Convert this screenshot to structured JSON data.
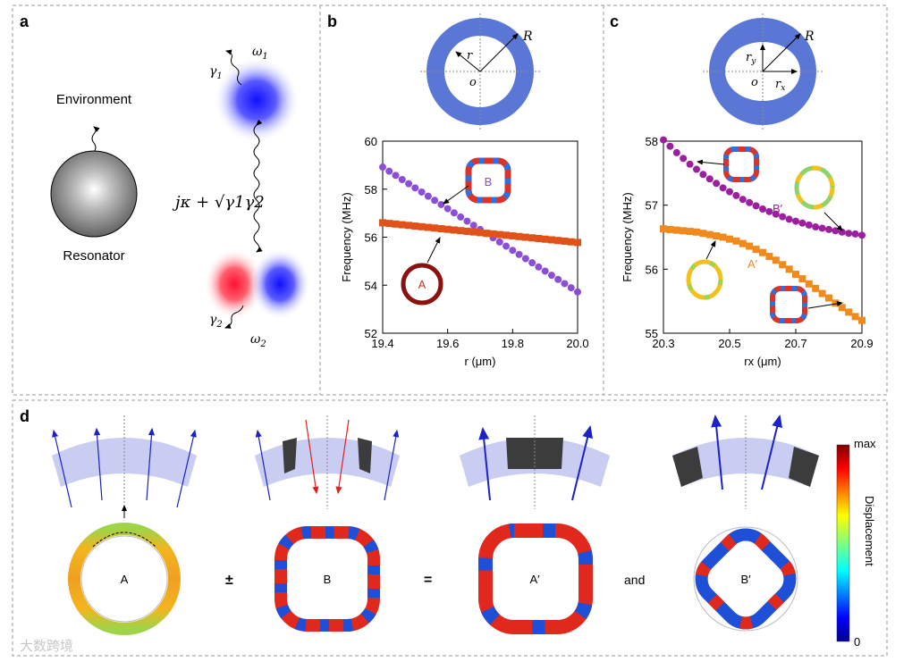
{
  "panel_labels": {
    "a": "a",
    "b": "b",
    "c": "c",
    "d": "d"
  },
  "panel_a": {
    "environment": "Environment",
    "resonator": "Resonator",
    "omega1": "ω",
    "omega1_sub": "1",
    "omega2": "ω",
    "omega2_sub": "2",
    "gamma1": "γ",
    "gamma1_sub": "1",
    "gamma2": "γ",
    "gamma2_sub": "2",
    "coupling": "jκ + √γ1γ2"
  },
  "panel_b_schematic": {
    "R": "R",
    "r": "r",
    "o": "o"
  },
  "panel_c_schematic": {
    "R": "R",
    "ry": "r",
    "ry_sub": "y",
    "rx": "r",
    "rx_sub": "x",
    "o": "o"
  },
  "panel_b_labels": {
    "A": "A",
    "B": "B"
  },
  "panel_c_labels": {
    "Bp": "B′",
    "Ap": "A′"
  },
  "panel_d": {
    "A": "A",
    "B": "B",
    "Ap": "A′",
    "Bp": "B′",
    "plusminus": "±",
    "equals": "=",
    "and": "and",
    "colorbar_max": "max",
    "colorbar_min": "0",
    "colorbar_label": "Displacement"
  },
  "watermark": "大数跨境",
  "chart_data": [
    {
      "type": "scatter",
      "title": "",
      "xlabel": "r (μm)",
      "ylabel": "Frequency (MHz)",
      "xlim": [
        19.4,
        20.0
      ],
      "ylim": [
        52,
        60
      ],
      "xticks": [
        "19.4",
        "19.6",
        "19.8",
        "20.0"
      ],
      "yticks": [
        "52",
        "54",
        "56",
        "58",
        "60"
      ],
      "series": [
        {
          "name": "B",
          "marker": "circle",
          "color": "#8a4fd6",
          "x0": 19.4,
          "x1": 20.0,
          "n": 31,
          "y0": 58.92,
          "y1": 53.72
        },
        {
          "name": "A",
          "marker": "square",
          "color": "#e0521a",
          "x0": 19.4,
          "x1": 20.0,
          "n": 31,
          "y0": 56.6,
          "y1": 55.78
        }
      ]
    },
    {
      "type": "scatter",
      "title": "",
      "xlabel": "rx (μm)",
      "ylabel": "Frequency (MHz)",
      "xlim": [
        20.3,
        20.9
      ],
      "ylim": [
        55,
        58
      ],
      "xticks": [
        "20.3",
        "20.5",
        "20.7",
        "20.9"
      ],
      "yticks": [
        "55",
        "56",
        "57",
        "58"
      ],
      "series": [
        {
          "name": "B′",
          "marker": "circle",
          "color": "#9b1f9e",
          "x": [
            20.3,
            20.32,
            20.34,
            20.36,
            20.38,
            20.4,
            20.42,
            20.44,
            20.46,
            20.48,
            20.5,
            20.52,
            20.54,
            20.56,
            20.58,
            20.6,
            20.62,
            20.64,
            20.66,
            20.68,
            20.7,
            20.72,
            20.74,
            20.76,
            20.78,
            20.8,
            20.82,
            20.84,
            20.86,
            20.88,
            20.9
          ],
          "y": [
            58.02,
            57.92,
            57.82,
            57.73,
            57.64,
            57.56,
            57.48,
            57.41,
            57.34,
            57.27,
            57.21,
            57.15,
            57.09,
            57.04,
            56.99,
            56.94,
            56.9,
            56.86,
            56.82,
            56.78,
            56.75,
            56.72,
            56.69,
            56.66,
            56.64,
            56.62,
            56.6,
            56.58,
            56.56,
            56.55,
            56.53
          ]
        },
        {
          "name": "A′",
          "marker": "square",
          "color": "#f08a1c",
          "x": [
            20.3,
            20.32,
            20.34,
            20.36,
            20.38,
            20.4,
            20.42,
            20.44,
            20.46,
            20.48,
            20.5,
            20.52,
            20.54,
            20.56,
            20.58,
            20.6,
            20.62,
            20.64,
            20.66,
            20.68,
            20.7,
            20.72,
            20.74,
            20.76,
            20.78,
            20.8,
            20.82,
            20.84,
            20.86,
            20.88,
            20.9
          ],
          "y": [
            56.63,
            56.62,
            56.61,
            56.6,
            56.59,
            56.58,
            56.56,
            56.54,
            56.52,
            56.5,
            56.47,
            56.44,
            56.4,
            56.36,
            56.31,
            56.26,
            56.2,
            56.14,
            56.07,
            56.0,
            55.92,
            55.85,
            55.77,
            55.7,
            55.62,
            55.55,
            55.47,
            55.4,
            55.33,
            55.26,
            55.2
          ]
        }
      ]
    }
  ]
}
